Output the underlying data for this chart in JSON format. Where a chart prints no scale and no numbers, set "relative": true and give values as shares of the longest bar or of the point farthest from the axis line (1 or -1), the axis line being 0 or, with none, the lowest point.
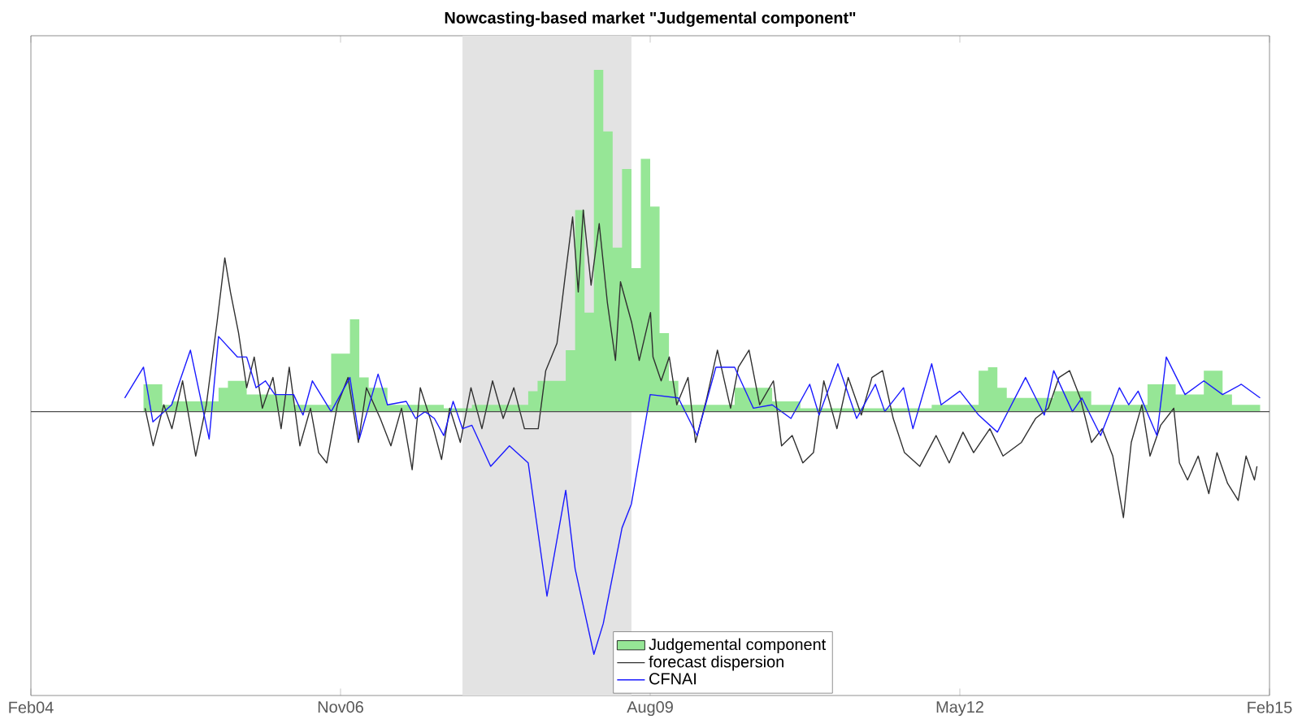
{
  "chart_data": {
    "type": "line",
    "title": "Nowcasting-based market \"Judgemental component\"",
    "relative": true,
    "x": [
      "2005-02",
      "2005-04",
      "2005-05",
      "2005-10",
      "2005-11",
      "2006-01",
      "2006-06",
      "2006-10",
      "2006-12",
      "2007-01",
      "2007-02",
      "2007-04",
      "2007-10",
      "2008-01",
      "2008-07",
      "2008-08",
      "2008-11",
      "2008-12",
      "2009-01",
      "2009-02",
      "2009-03",
      "2009-04",
      "2009-05",
      "2009-06",
      "2009-07",
      "2009-08",
      "2009-09",
      "2009-10",
      "2009-11",
      "2010-05",
      "2010-09",
      "2010-12",
      "2012-02",
      "2012-07",
      "2012-08",
      "2012-09",
      "2012-10",
      "2013-03",
      "2013-07",
      "2014-01",
      "2014-04",
      "2014-07",
      "2014-09",
      "2014-10",
      "2015-01"
    ],
    "series": [
      {
        "name": "Judgemental component",
        "type": "area",
        "color": "#96e696",
        "values": [
          0.08,
          0.02,
          0.03,
          0.07,
          0.09,
          0.05,
          0.02,
          0.17,
          0.27,
          0.1,
          0.07,
          0.02,
          0.01,
          0.02,
          0.06,
          0.09,
          0.18,
          0.59,
          0.29,
          1.0,
          0.82,
          0.48,
          0.71,
          0.42,
          0.74,
          0.6,
          0.23,
          0.09,
          0.02,
          0.07,
          0.03,
          0.01,
          0.02,
          0.12,
          0.13,
          0.07,
          0.04,
          0.06,
          0.02,
          0.08,
          0.05,
          0.12,
          0.05,
          0.02,
          0.02
        ]
      },
      {
        "name": "forecast dispersion",
        "color": "#303030",
        "x": [
          "2005-02-06",
          "2005-03-02",
          "2005-04-06",
          "2005-05-02",
          "2005-06-06",
          "2005-07-18",
          "2005-08-22",
          "2005-09-26",
          "2005-10-21",
          "2005-11-09",
          "2005-12-05",
          "2006-01-01",
          "2006-01-25",
          "2006-02-21",
          "2006-03-25",
          "2006-04-21",
          "2006-05-17",
          "2006-06-21",
          "2006-07-25",
          "2006-08-21",
          "2006-09-17",
          "2006-10-21",
          "2006-11-25",
          "2006-12-28",
          "2007-01-24",
          "2007-03-08",
          "2007-04-12",
          "2007-05-16",
          "2007-06-20",
          "2007-07-16",
          "2007-08-28",
          "2007-09-24",
          "2007-10-20",
          "2007-11-24",
          "2007-12-28",
          "2008-02-03",
          "2008-03-07",
          "2008-04-11",
          "2008-05-15",
          "2008-06-19",
          "2008-08-03",
          "2008-08-27",
          "2008-10-03",
          "2008-10-27",
          "2008-11-23",
          "2008-12-11",
          "2008-12-27",
          "2009-01-22",
          "2009-02-18",
          "2009-03-14",
          "2009-04-10",
          "2009-04-26",
          "2009-06-02",
          "2009-06-26",
          "2009-08-02",
          "2009-08-10",
          "2009-09-06",
          "2009-10-02",
          "2009-10-26",
          "2009-12-02",
          "2009-12-26",
          "2010-02-02",
          "2010-03-06",
          "2010-04-18",
          "2010-05-13",
          "2010-06-17",
          "2010-07-21",
          "2010-09-05",
          "2010-10-01",
          "2010-11-05",
          "2010-12-09",
          "2011-01-13",
          "2011-02-16",
          "2011-03-28",
          "2011-05-04",
          "2011-06-16",
          "2011-07-20",
          "2011-08-24",
          "2011-09-28",
          "2011-11-04",
          "2011-12-23",
          "2012-02-15",
          "2012-03-27",
          "2012-05-11",
          "2012-06-15",
          "2012-08-07",
          "2012-09-19",
          "2012-11-18",
          "2013-01-03",
          "2013-02-14",
          "2013-03-18",
          "2013-04-22",
          "2013-05-26",
          "2013-07-02",
          "2013-08-06",
          "2013-09-10",
          "2013-10-14",
          "2013-11-09",
          "2013-12-13",
          "2014-01-09",
          "2014-02-13",
          "2014-03-25",
          "2014-04-13",
          "2014-05-09",
          "2014-06-13",
          "2014-07-17",
          "2014-08-13",
          "2014-09-17",
          "2014-10-21",
          "2014-11-16",
          "2014-12-13",
          "2014-12-21"
        ],
        "values": [
          0.01,
          -0.1,
          0.02,
          -0.05,
          0.09,
          -0.13,
          0.02,
          0.26,
          0.45,
          0.35,
          0.23,
          0.07,
          0.16,
          0.01,
          0.1,
          -0.05,
          0.13,
          -0.1,
          0.01,
          -0.12,
          -0.15,
          0.02,
          0.1,
          -0.09,
          0.07,
          -0.02,
          -0.1,
          0.01,
          -0.17,
          0.07,
          -0.05,
          -0.14,
          0.01,
          -0.09,
          0.07,
          -0.05,
          0.09,
          -0.02,
          0.07,
          -0.05,
          -0.05,
          0.12,
          0.2,
          0.38,
          0.57,
          0.35,
          0.59,
          0.37,
          0.55,
          0.32,
          0.15,
          0.38,
          0.26,
          0.15,
          0.29,
          0.16,
          0.09,
          0.16,
          0.02,
          0.1,
          -0.09,
          0.04,
          0.18,
          0.01,
          0.13,
          0.18,
          0.02,
          0.09,
          -0.1,
          -0.07,
          -0.15,
          -0.12,
          0.09,
          -0.05,
          0.1,
          -0.01,
          0.1,
          0.12,
          -0.02,
          -0.12,
          -0.16,
          -0.07,
          -0.15,
          -0.06,
          -0.12,
          -0.05,
          -0.13,
          -0.09,
          -0.02,
          0.01,
          0.1,
          0.12,
          0.04,
          -0.09,
          -0.05,
          -0.13,
          -0.31,
          -0.09,
          0.02,
          -0.13,
          -0.04,
          0.01,
          -0.15,
          -0.2,
          -0.13,
          -0.24,
          -0.12,
          -0.21,
          -0.26,
          -0.13,
          -0.2,
          -0.16
        ]
      },
      {
        "name": "CFNAI",
        "color": "#1a1aff",
        "x": [
          "2004-12",
          "2005-02",
          "2005-03",
          "2005-05",
          "2005-07",
          "2005-09",
          "2005-10",
          "2005-12",
          "2006-01",
          "2006-02",
          "2006-03",
          "2006-04",
          "2006-06",
          "2006-07",
          "2006-08",
          "2006-10",
          "2006-12",
          "2007-01",
          "2007-03",
          "2007-04",
          "2007-06",
          "2007-07",
          "2007-08",
          "2007-09",
          "2007-10",
          "2007-11",
          "2007-12",
          "2008-01",
          "2008-03",
          "2008-05",
          "2008-07",
          "2008-09",
          "2008-11",
          "2008-12",
          "2009-02",
          "2009-03",
          "2009-05",
          "2009-06",
          "2009-08",
          "2009-11",
          "2010-01",
          "2010-03",
          "2010-05",
          "2010-07",
          "2010-09",
          "2010-11",
          "2011-01",
          "2011-02",
          "2011-04",
          "2011-06",
          "2011-08",
          "2011-09",
          "2011-11",
          "2011-12",
          "2012-02",
          "2012-03",
          "2012-05",
          "2012-07",
          "2012-09",
          "2012-12",
          "2013-02",
          "2013-03",
          "2013-05",
          "2013-06",
          "2013-08",
          "2013-10",
          "2013-11",
          "2013-12",
          "2014-02",
          "2014-03",
          "2014-05",
          "2014-07",
          "2014-09",
          "2014-11",
          "2015-01"
        ],
        "values": [
          0.04,
          0.13,
          -0.03,
          0.02,
          0.18,
          -0.08,
          0.22,
          0.16,
          0.16,
          0.07,
          0.09,
          0.05,
          0.05,
          -0.01,
          0.09,
          0.0,
          0.1,
          -0.08,
          0.11,
          0.02,
          0.03,
          -0.02,
          0.0,
          -0.02,
          -0.07,
          0.03,
          -0.05,
          -0.04,
          -0.16,
          -0.1,
          -0.15,
          -0.54,
          -0.23,
          -0.46,
          -0.71,
          -0.62,
          -0.34,
          -0.27,
          0.05,
          0.04,
          -0.07,
          0.13,
          0.13,
          0.01,
          0.02,
          -0.02,
          0.08,
          -0.01,
          0.14,
          -0.02,
          0.08,
          0.0,
          0.07,
          -0.05,
          0.14,
          0.02,
          0.06,
          -0.01,
          -0.06,
          0.1,
          -0.01,
          0.12,
          0.0,
          0.04,
          -0.07,
          0.07,
          0.02,
          0.06,
          -0.07,
          0.16,
          0.05,
          0.09,
          0.05,
          0.08,
          0.04
        ]
      }
    ],
    "xlim": [
      "2004-02",
      "2015-02"
    ],
    "xticks": [
      {
        "value": "2004-02",
        "label": "Feb04"
      },
      {
        "value": "2006-11",
        "label": "Nov06"
      },
      {
        "value": "2009-08",
        "label": "Aug09"
      },
      {
        "value": "2012-05",
        "label": "May12"
      },
      {
        "value": "2015-02",
        "label": "Feb15"
      }
    ],
    "bands": [
      {
        "axis": "x",
        "from": "2007-12",
        "to": "2009-06",
        "color": "#e3e3e3"
      }
    ],
    "ref_lines": [
      {
        "axis": "y",
        "value": 0,
        "color": "#4d4d4d"
      }
    ],
    "legend": "bottom"
  }
}
